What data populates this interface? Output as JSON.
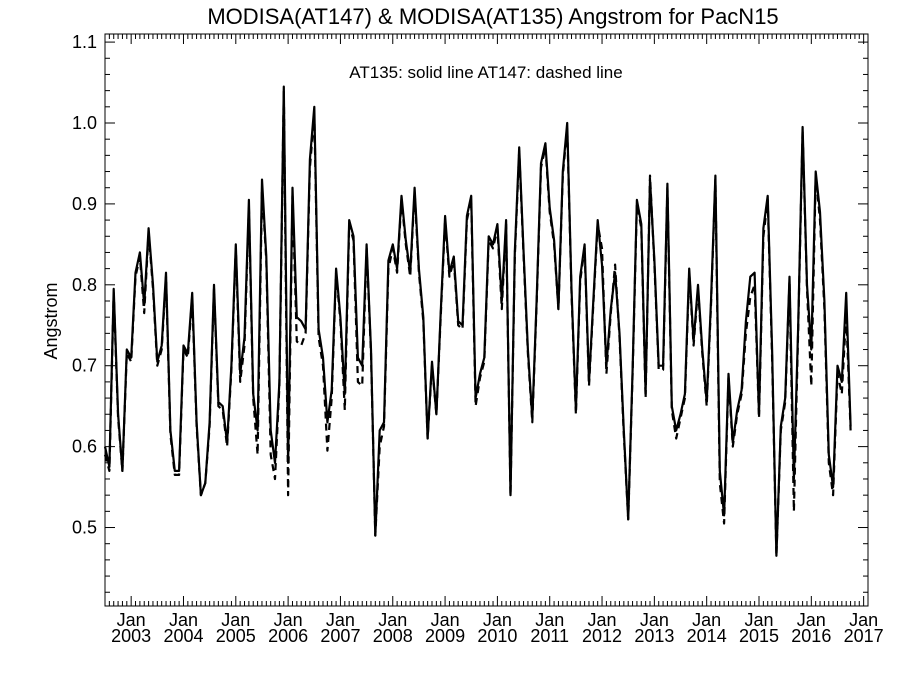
{
  "chart_data": {
    "type": "line",
    "title": "MODISA(AT147) & MODISA(AT135)  Angstrom for PacN15",
    "xlabel": "",
    "ylabel": "Angstrom",
    "annotation": "AT135: solid line   AT147: dashed line",
    "ylim": [
      0.403,
      1.11
    ],
    "xlim": [
      "2002-07",
      "2017-02"
    ],
    "y_ticks": [
      "0.5",
      "0.6",
      "0.7",
      "0.8",
      "0.9",
      "1.0",
      "1.1"
    ],
    "x_ticks": [
      {
        "month": "Jan",
        "year": "2003"
      },
      {
        "month": "Jan",
        "year": "2004"
      },
      {
        "month": "Jan",
        "year": "2005"
      },
      {
        "month": "Jan",
        "year": "2006"
      },
      {
        "month": "Jan",
        "year": "2007"
      },
      {
        "month": "Jan",
        "year": "2008"
      },
      {
        "month": "Jan",
        "year": "2009"
      },
      {
        "month": "Jan",
        "year": "2010"
      },
      {
        "month": "Jan",
        "year": "2011"
      },
      {
        "month": "Jan",
        "year": "2012"
      },
      {
        "month": "Jan",
        "year": "2013"
      },
      {
        "month": "Jan",
        "year": "2014"
      },
      {
        "month": "Jan",
        "year": "2015"
      },
      {
        "month": "Jan",
        "year": "2016"
      },
      {
        "month": "Jan",
        "year": "2017"
      }
    ],
    "grid": false,
    "series": [
      {
        "name": "AT135",
        "style": "solid",
        "start": "2002-07",
        "values": [
          0.6,
          0.575,
          0.795,
          0.64,
          0.57,
          0.72,
          0.71,
          0.815,
          0.84,
          0.775,
          0.87,
          0.8,
          0.705,
          0.725,
          0.815,
          0.62,
          0.57,
          0.57,
          0.725,
          0.715,
          0.79,
          0.63,
          0.54,
          0.555,
          0.63,
          0.8,
          0.655,
          0.65,
          0.605,
          0.7,
          0.85,
          0.69,
          0.735,
          0.905,
          0.665,
          0.62,
          0.93,
          0.835,
          0.62,
          0.58,
          0.68,
          1.045,
          0.58,
          0.92,
          0.76,
          0.755,
          0.745,
          0.955,
          1.02,
          0.745,
          0.71,
          0.63,
          0.67,
          0.82,
          0.76,
          0.665,
          0.88,
          0.86,
          0.71,
          0.7,
          0.85,
          0.72,
          0.49,
          0.62,
          0.63,
          0.83,
          0.85,
          0.82,
          0.91,
          0.855,
          0.815,
          0.92,
          0.82,
          0.76,
          0.61,
          0.705,
          0.64,
          0.765,
          0.885,
          0.815,
          0.835,
          0.755,
          0.75,
          0.885,
          0.91,
          0.66,
          0.69,
          0.71,
          0.86,
          0.85,
          0.875,
          0.78,
          0.88,
          0.54,
          0.84,
          0.97,
          0.84,
          0.72,
          0.635,
          0.78,
          0.95,
          0.975,
          0.895,
          0.855,
          0.77,
          0.94,
          1.0,
          0.795,
          0.645,
          0.81,
          0.85,
          0.68,
          0.78,
          0.88,
          0.825,
          0.7,
          0.77,
          0.815,
          0.74,
          0.62,
          0.51,
          0.695,
          0.905,
          0.875,
          0.665,
          0.93,
          0.83,
          0.7,
          0.7,
          0.925,
          0.65,
          0.62,
          0.64,
          0.665,
          0.82,
          0.73,
          0.8,
          0.72,
          0.655,
          0.78,
          0.935,
          0.57,
          0.515,
          0.69,
          0.605,
          0.645,
          0.67,
          0.755,
          0.81,
          0.815,
          0.64,
          0.87,
          0.91,
          0.72,
          0.465,
          0.625,
          0.66,
          0.81,
          0.56,
          0.75,
          0.995,
          0.8,
          0.72,
          0.94,
          0.89,
          0.78,
          0.59,
          0.55,
          0.7,
          0.68,
          0.79,
          0.625
        ]
      },
      {
        "name": "AT147",
        "style": "dashed",
        "start": "2002-07",
        "values": [
          0.59,
          0.57,
          0.79,
          0.635,
          0.57,
          0.715,
          0.705,
          0.81,
          0.835,
          0.765,
          0.865,
          0.795,
          0.7,
          0.72,
          0.81,
          0.615,
          0.565,
          0.565,
          0.72,
          0.71,
          0.785,
          0.625,
          0.54,
          0.555,
          0.625,
          0.795,
          0.65,
          0.645,
          0.6,
          0.695,
          0.845,
          0.68,
          0.725,
          0.895,
          0.66,
          0.59,
          0.92,
          0.83,
          0.59,
          0.56,
          0.675,
          1.04,
          0.54,
          0.91,
          0.73,
          0.725,
          0.74,
          0.945,
          1.01,
          0.735,
          0.7,
          0.595,
          0.66,
          0.815,
          0.755,
          0.645,
          0.875,
          0.855,
          0.68,
          0.675,
          0.845,
          0.715,
          0.49,
          0.6,
          0.625,
          0.82,
          0.845,
          0.815,
          0.905,
          0.85,
          0.81,
          0.915,
          0.815,
          0.755,
          0.61,
          0.7,
          0.64,
          0.76,
          0.88,
          0.81,
          0.83,
          0.75,
          0.745,
          0.88,
          0.905,
          0.65,
          0.685,
          0.705,
          0.855,
          0.845,
          0.87,
          0.77,
          0.875,
          0.54,
          0.835,
          0.965,
          0.835,
          0.715,
          0.63,
          0.775,
          0.945,
          0.97,
          0.89,
          0.85,
          0.77,
          0.935,
          0.995,
          0.79,
          0.64,
          0.805,
          0.845,
          0.675,
          0.775,
          0.875,
          0.845,
          0.69,
          0.765,
          0.825,
          0.735,
          0.615,
          0.51,
          0.69,
          0.9,
          0.87,
          0.66,
          0.935,
          0.825,
          0.695,
          0.695,
          0.92,
          0.645,
          0.61,
          0.635,
          0.66,
          0.815,
          0.725,
          0.795,
          0.715,
          0.65,
          0.775,
          0.93,
          0.555,
          0.505,
          0.685,
          0.6,
          0.64,
          0.665,
          0.74,
          0.785,
          0.8,
          0.635,
          0.86,
          0.905,
          0.71,
          0.465,
          0.62,
          0.655,
          0.805,
          0.52,
          0.745,
          0.99,
          0.795,
          0.675,
          0.935,
          0.88,
          0.77,
          0.58,
          0.54,
          0.69,
          0.665,
          0.765,
          0.62
        ]
      }
    ]
  }
}
